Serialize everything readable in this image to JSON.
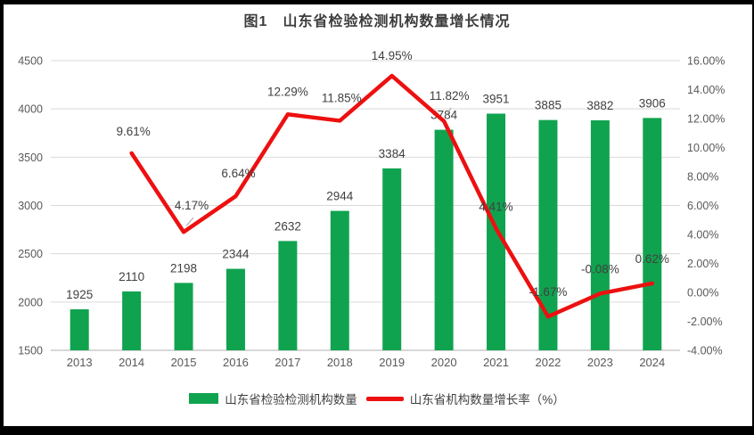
{
  "title": "图1　山东省检验检测机构数量增长情况",
  "colors": {
    "bar": "#10A34F",
    "line": "#ED1010",
    "grid": "#D9D9D9",
    "axis_line": "#C0C0C0",
    "tick_text": "#595959",
    "label_text": "#404040",
    "leader": "#A6A6A6",
    "frame": "#000000",
    "background": "#FFFFFF"
  },
  "chart_data": {
    "type": "bar+line",
    "categories": [
      "2013",
      "2014",
      "2015",
      "2016",
      "2017",
      "2018",
      "2019",
      "2020",
      "2021",
      "2022",
      "2023",
      "2024"
    ],
    "series": [
      {
        "name": "山东省检验检测机构数量",
        "type": "bar",
        "axis": "left",
        "color": "#10A34F",
        "values": [
          1925,
          2110,
          2198,
          2344,
          2632,
          2944,
          3384,
          3784,
          3951,
          3885,
          3882,
          3906
        ],
        "point_labels": [
          "1925",
          "2110",
          "2198",
          "2344",
          "2632",
          "2944",
          "3384",
          "3784",
          "3951",
          "3885",
          "3882",
          "3906"
        ]
      },
      {
        "name": "山东省机构数量增长率（%）",
        "type": "line",
        "axis": "right",
        "color": "#ED1010",
        "values": [
          null,
          9.61,
          4.17,
          6.64,
          12.29,
          11.85,
          14.95,
          11.82,
          4.41,
          -1.67,
          -0.08,
          0.62
        ],
        "point_labels": [
          null,
          "9.61%",
          "4.17%",
          "6.64%",
          "12.29%",
          "11.85%",
          "14.95%",
          "11.82%",
          "4.41%",
          "-1.67%",
          "-0.08%",
          "0.62%"
        ]
      }
    ],
    "left_axis": {
      "min": 1500,
      "max": 4500,
      "step": 500,
      "tick_labels": [
        "1500",
        "2000",
        "2500",
        "3000",
        "3500",
        "4000",
        "4500"
      ]
    },
    "right_axis": {
      "min": -4,
      "max": 16,
      "step": 2,
      "tick_labels": [
        "-4.00%",
        "-2.00%",
        "0.00%",
        "2.00%",
        "4.00%",
        "6.00%",
        "8.00%",
        "10.00%",
        "12.00%",
        "14.00%",
        "16.00%"
      ]
    },
    "grid": true,
    "legend_position": "bottom",
    "title": "图1　山东省检验检测机构数量增长情况"
  },
  "legend": {
    "items": [
      {
        "label": "山东省检验检测机构数量",
        "swatch": "bar",
        "color": "#10A34F"
      },
      {
        "label": "山东省机构数量增长率（%）",
        "swatch": "line",
        "color": "#ED1010"
      }
    ]
  }
}
